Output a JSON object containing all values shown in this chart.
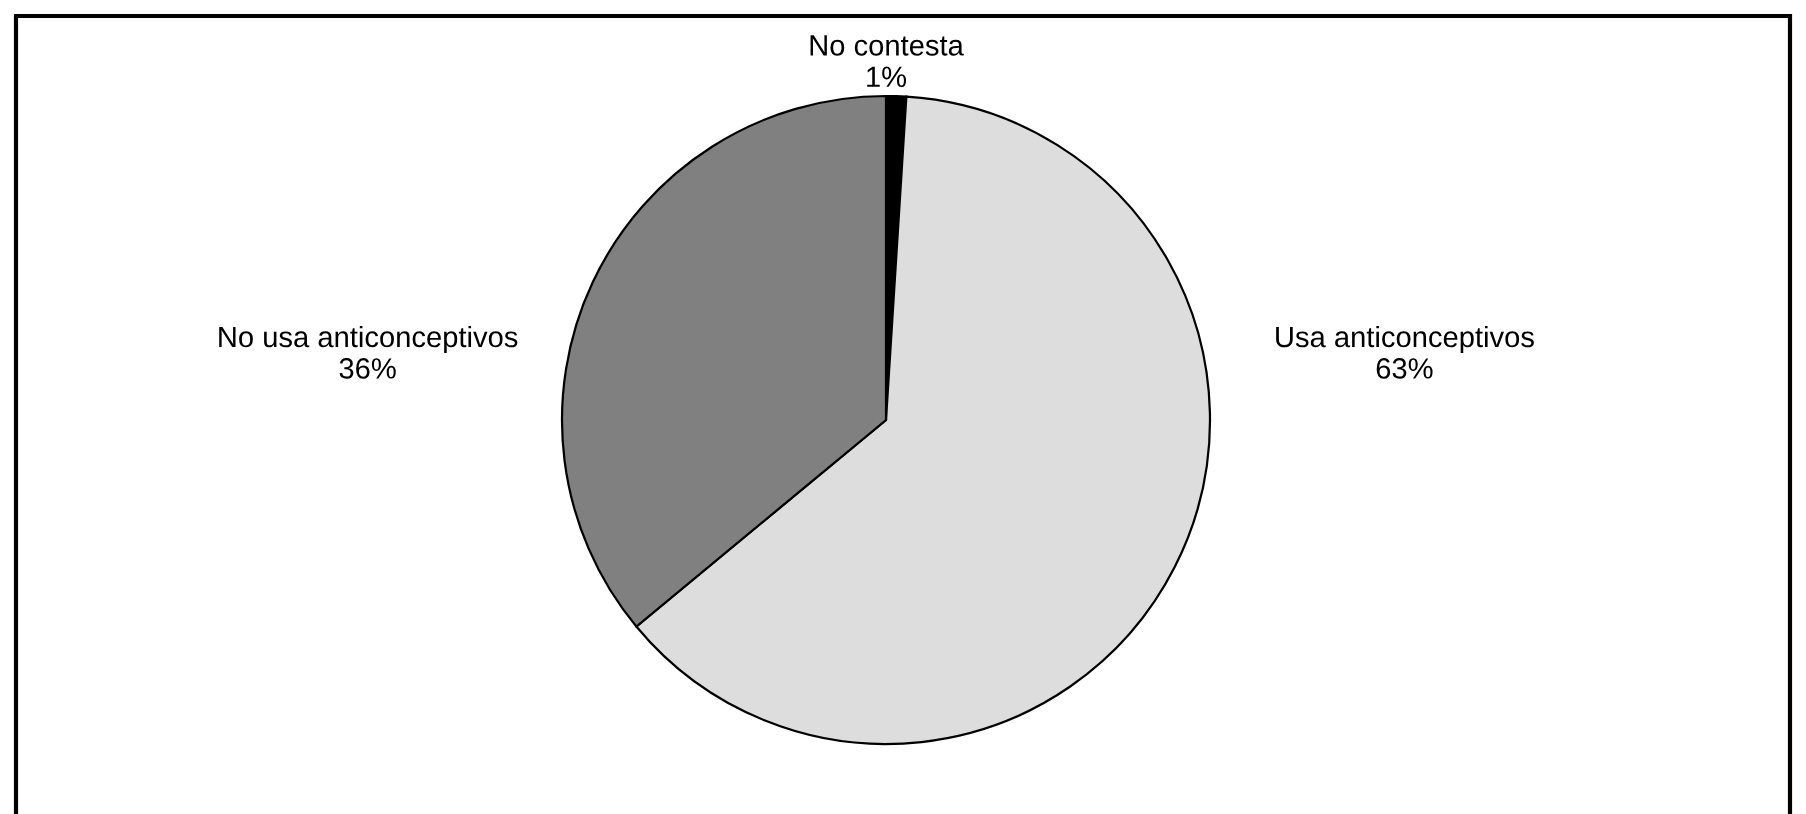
{
  "chart_data": {
    "type": "pie",
    "categories": [
      "No contesta",
      "Usa anticonceptivos",
      "No usa anticonceptivos"
    ],
    "values": [
      1,
      63,
      36
    ],
    "value_labels": [
      "1%",
      "63%",
      "36%"
    ],
    "colors": [
      "#000000",
      "#dddddd",
      "#808080"
    ]
  }
}
